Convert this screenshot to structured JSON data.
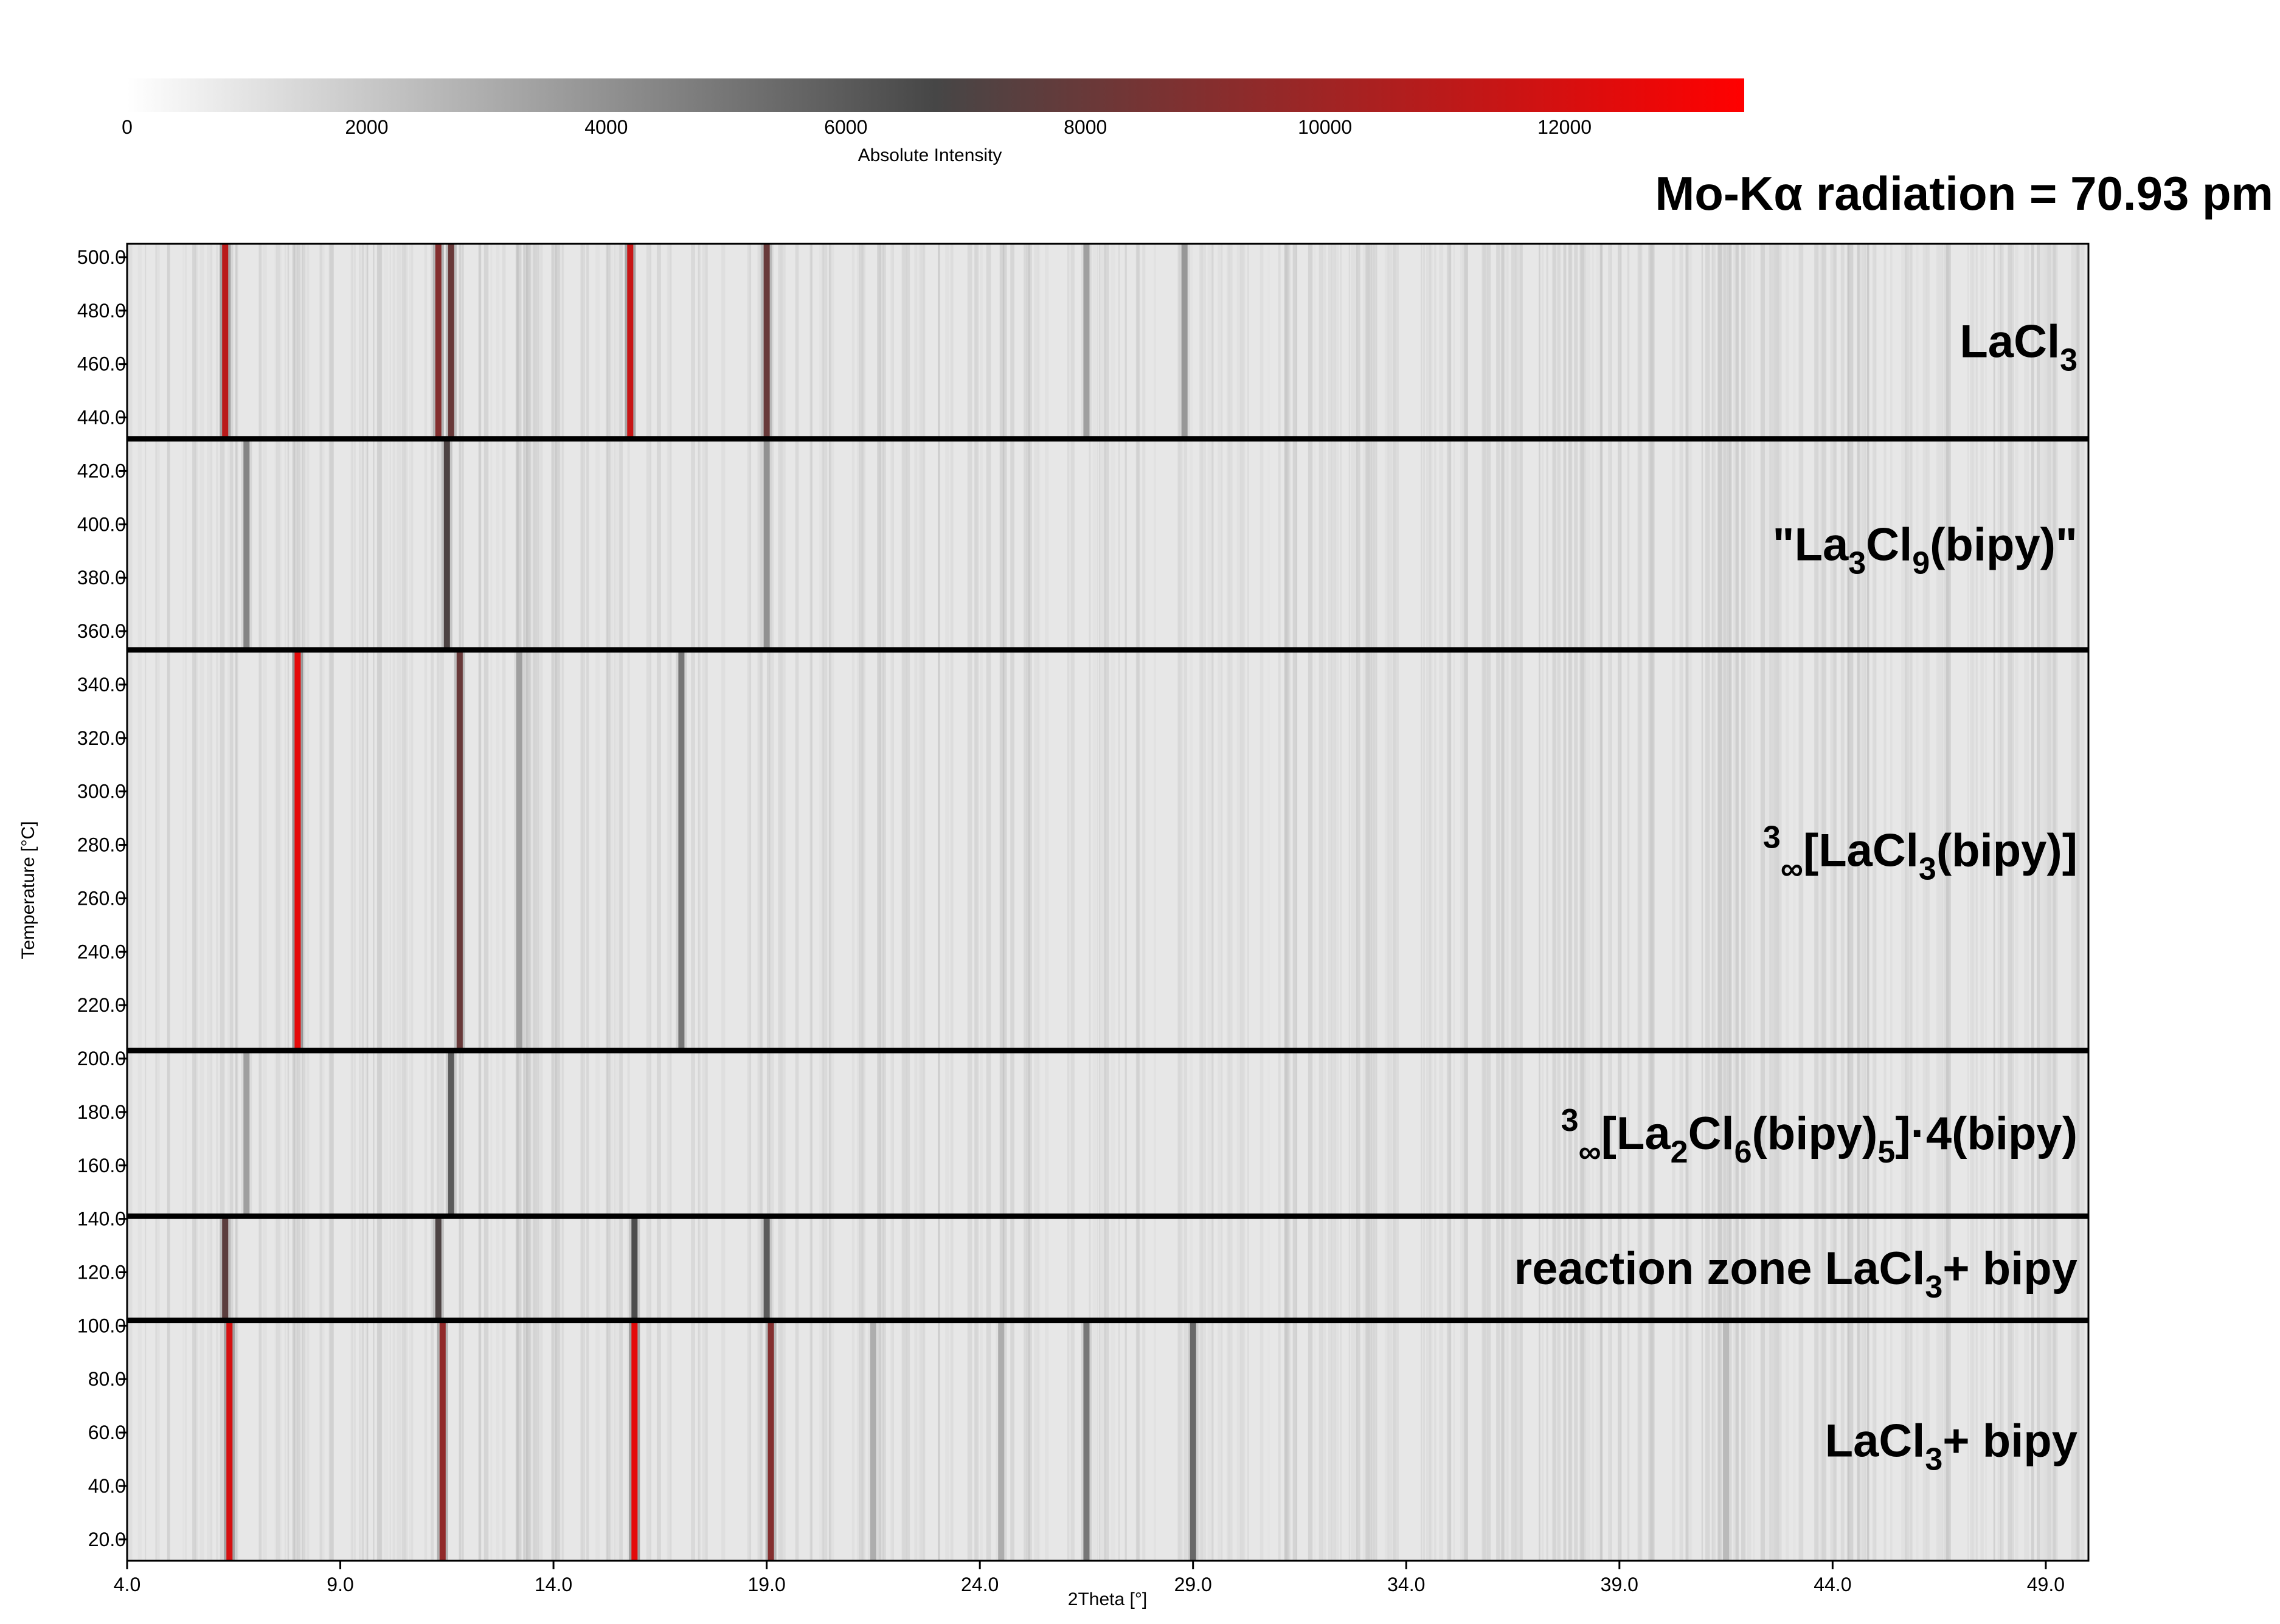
{
  "header": {
    "radiation_label": "Mo-Kα radiation = 70.93 pm"
  },
  "colorbar": {
    "label": "Absolute Intensity",
    "ticks": [
      0,
      2000,
      4000,
      6000,
      8000,
      10000,
      12000
    ],
    "max": 13500,
    "colors": [
      "#ffffff",
      "#464646",
      "#ff0000"
    ]
  },
  "chart_data": {
    "type": "heatmap",
    "title": "",
    "xlabel": "2Theta [°]",
    "ylabel": "Temperature [°C]",
    "xlim": [
      4.0,
      50.0
    ],
    "ylim": [
      12.0,
      505.0
    ],
    "x_ticks": [
      "4.0",
      "9.0",
      "14.0",
      "19.0",
      "24.0",
      "29.0",
      "34.0",
      "39.0",
      "44.0",
      "49.0"
    ],
    "y_ticks": [
      "20.0",
      "40.0",
      "60.0",
      "80.0",
      "100.0",
      "120.0",
      "140.0",
      "160.0",
      "180.0",
      "200.0",
      "220.0",
      "240.0",
      "260.0",
      "280.0",
      "300.0",
      "320.0",
      "340.0",
      "360.0",
      "380.0",
      "400.0",
      "420.0",
      "440.0",
      "460.0",
      "480.0",
      "500.0"
    ],
    "phase_boundaries_C": [
      432,
      353,
      203,
      141,
      102
    ],
    "phases": [
      {
        "t_min": 432,
        "t_max": 505,
        "label": [
          {
            "t": "LaCl"
          },
          {
            "t": "3",
            "sub": true
          }
        ]
      },
      {
        "t_min": 353,
        "t_max": 432,
        "label": [
          {
            "t": "\"La"
          },
          {
            "t": "3",
            "sub": true
          },
          {
            "t": "Cl"
          },
          {
            "t": "9",
            "sub": true
          },
          {
            "t": "(bipy)\""
          }
        ]
      },
      {
        "t_min": 203,
        "t_max": 353,
        "label": [
          {
            "t": "3",
            "sup": true
          },
          {
            "t": "∞",
            "sub": true
          },
          {
            "t": "[LaCl"
          },
          {
            "t": "3",
            "sub": true
          },
          {
            "t": "(bipy)]"
          }
        ]
      },
      {
        "t_min": 141,
        "t_max": 203,
        "label": [
          {
            "t": "3",
            "sup": true
          },
          {
            "t": "∞",
            "sub": true
          },
          {
            "t": "[La"
          },
          {
            "t": "2",
            "sub": true
          },
          {
            "t": "Cl"
          },
          {
            "t": "6",
            "sub": true
          },
          {
            "t": "(bipy)"
          },
          {
            "t": "5",
            "sub": true
          },
          {
            "t": "]·4(bipy)"
          }
        ]
      },
      {
        "t_min": 102,
        "t_max": 141,
        "label": [
          {
            "t": "reaction zone LaCl"
          },
          {
            "t": "3",
            "sub": true
          },
          {
            "t": "+ bipy"
          }
        ]
      },
      {
        "t_min": 12,
        "t_max": 102,
        "label": [
          {
            "t": "LaCl"
          },
          {
            "t": "3",
            "sub": true
          },
          {
            "t": "+ bipy"
          }
        ]
      }
    ],
    "peaks": [
      {
        "two_theta": 6.3,
        "t_min": 432,
        "t_max": 505,
        "intensity": 11000
      },
      {
        "two_theta": 11.3,
        "t_min": 432,
        "t_max": 505,
        "intensity": 9000
      },
      {
        "two_theta": 11.6,
        "t_min": 432,
        "t_max": 505,
        "intensity": 8000
      },
      {
        "two_theta": 15.8,
        "t_min": 432,
        "t_max": 505,
        "intensity": 11500
      },
      {
        "two_theta": 19.0,
        "t_min": 432,
        "t_max": 505,
        "intensity": 8000
      },
      {
        "two_theta": 26.5,
        "t_min": 432,
        "t_max": 505,
        "intensity": 3500
      },
      {
        "two_theta": 28.8,
        "t_min": 432,
        "t_max": 505,
        "intensity": 3800
      },
      {
        "two_theta": 11.5,
        "t_min": 353,
        "t_max": 432,
        "intensity": 7000
      },
      {
        "two_theta": 6.8,
        "t_min": 353,
        "t_max": 432,
        "intensity": 4500
      },
      {
        "two_theta": 19.0,
        "t_min": 353,
        "t_max": 432,
        "intensity": 4000
      },
      {
        "two_theta": 8.0,
        "t_min": 203,
        "t_max": 353,
        "intensity": 12500
      },
      {
        "two_theta": 11.8,
        "t_min": 203,
        "t_max": 353,
        "intensity": 8000
      },
      {
        "two_theta": 17.0,
        "t_min": 203,
        "t_max": 353,
        "intensity": 5000
      },
      {
        "two_theta": 13.2,
        "t_min": 203,
        "t_max": 353,
        "intensity": 3500
      },
      {
        "two_theta": 11.6,
        "t_min": 141,
        "t_max": 203,
        "intensity": 6000
      },
      {
        "two_theta": 6.8,
        "t_min": 141,
        "t_max": 203,
        "intensity": 3500
      },
      {
        "two_theta": 6.3,
        "t_min": 102,
        "t_max": 141,
        "intensity": 7500
      },
      {
        "two_theta": 11.3,
        "t_min": 102,
        "t_max": 141,
        "intensity": 7000
      },
      {
        "two_theta": 15.9,
        "t_min": 102,
        "t_max": 141,
        "intensity": 6500
      },
      {
        "two_theta": 19.0,
        "t_min": 102,
        "t_max": 141,
        "intensity": 6000
      },
      {
        "two_theta": 6.4,
        "t_min": 12,
        "t_max": 102,
        "intensity": 12000
      },
      {
        "two_theta": 11.4,
        "t_min": 12,
        "t_max": 102,
        "intensity": 9500
      },
      {
        "two_theta": 15.9,
        "t_min": 12,
        "t_max": 102,
        "intensity": 12500
      },
      {
        "two_theta": 19.1,
        "t_min": 12,
        "t_max": 102,
        "intensity": 9000
      },
      {
        "two_theta": 26.5,
        "t_min": 12,
        "t_max": 102,
        "intensity": 5000
      },
      {
        "two_theta": 29.0,
        "t_min": 12,
        "t_max": 102,
        "intensity": 5500
      },
      {
        "two_theta": 21.5,
        "t_min": 12,
        "t_max": 102,
        "intensity": 3000
      },
      {
        "two_theta": 24.5,
        "t_min": 12,
        "t_max": 102,
        "intensity": 3000
      },
      {
        "two_theta": 41.5,
        "t_min": 12,
        "t_max": 102,
        "intensity": 2500
      }
    ]
  }
}
